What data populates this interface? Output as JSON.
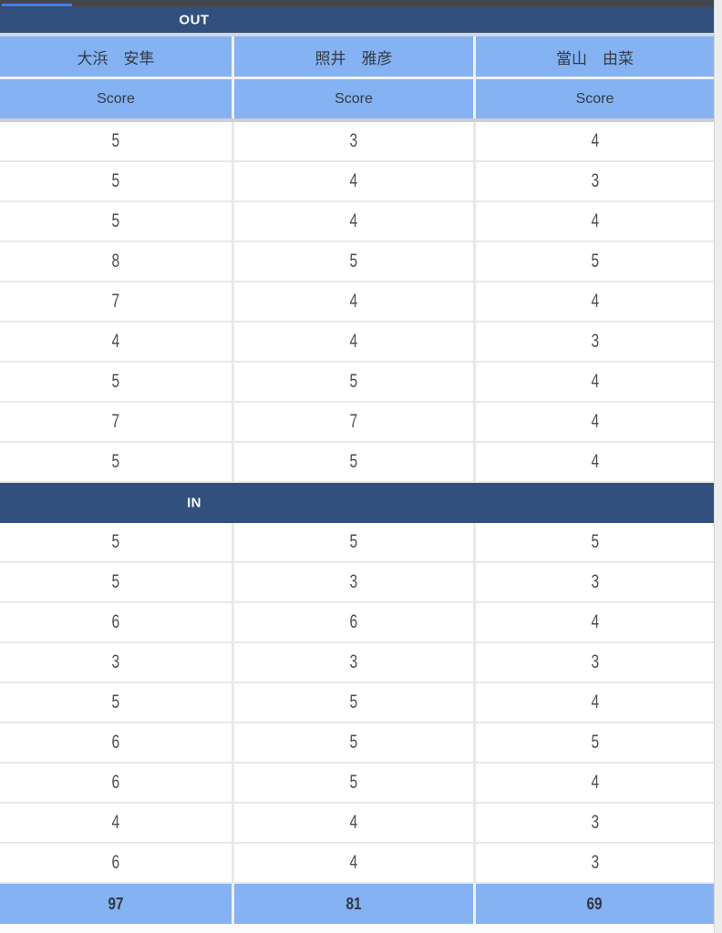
{
  "app_bar": {
    "clipped_title": ""
  },
  "table": {
    "score_label": "Score",
    "players": [
      "大浜　安隼",
      "照井　雅彦",
      "當山　由菜"
    ],
    "sections": [
      {
        "label": "OUT",
        "rows": [
          [
            5,
            3,
            4
          ],
          [
            5,
            4,
            3
          ],
          [
            5,
            4,
            4
          ],
          [
            8,
            5,
            5
          ],
          [
            7,
            4,
            4
          ],
          [
            4,
            4,
            3
          ],
          [
            5,
            5,
            4
          ],
          [
            7,
            7,
            4
          ],
          [
            5,
            5,
            4
          ]
        ]
      },
      {
        "label": "IN",
        "rows": [
          [
            5,
            5,
            5
          ],
          [
            5,
            3,
            3
          ],
          [
            6,
            6,
            4
          ],
          [
            3,
            3,
            3
          ],
          [
            5,
            5,
            4
          ],
          [
            6,
            5,
            5
          ],
          [
            6,
            5,
            4
          ],
          [
            4,
            4,
            3
          ],
          [
            6,
            4,
            3
          ]
        ]
      }
    ],
    "totals": [
      97,
      81,
      69
    ]
  },
  "colors": {
    "navy": "#31507e",
    "cell_blue": "#85b2f2",
    "app_bar_gray": "#42474f",
    "accent_line": "#3f7df2"
  }
}
